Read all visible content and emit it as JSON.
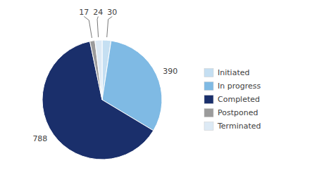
{
  "chart_data": {
    "type": "pie",
    "categories": [
      "Initiated",
      "In progress",
      "Completed",
      "Postponed",
      "Terminated"
    ],
    "values": [
      30,
      390,
      788,
      17,
      24
    ],
    "colors": [
      "#c5dff2",
      "#7fbae4",
      "#1a2f6b",
      "#9b9b9b",
      "#ddeaf5"
    ],
    "data_labels": true,
    "legend": "right"
  }
}
